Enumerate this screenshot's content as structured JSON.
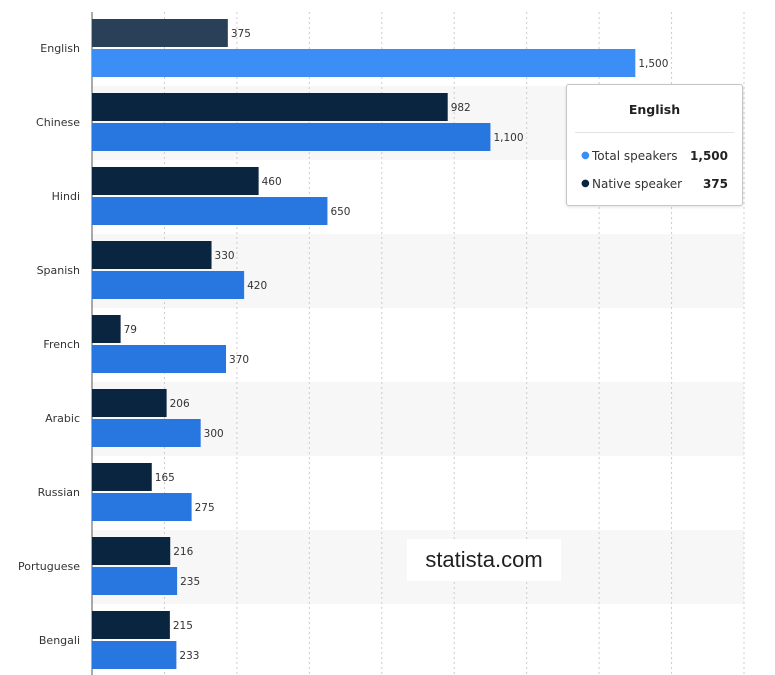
{
  "chart_data": {
    "type": "bar",
    "orientation": "horizontal",
    "categories": [
      "English",
      "Chinese",
      "Hindi",
      "Spanish",
      "French",
      "Arabic",
      "Russian",
      "Portuguese",
      "Bengali"
    ],
    "series": [
      {
        "name": "Native speaker",
        "color": "#0a2540",
        "values": [
          375,
          982,
          460,
          330,
          79,
          206,
          165,
          216,
          215
        ],
        "labels": [
          "375",
          "982",
          "460",
          "330",
          "79",
          "206",
          "165",
          "216",
          "215"
        ]
      },
      {
        "name": "Total speakers",
        "color": "#2876e0",
        "values": [
          1500,
          1100,
          650,
          420,
          370,
          300,
          275,
          235,
          233
        ],
        "labels": [
          "1,500",
          "1,100",
          "650",
          "420",
          "370",
          "300",
          "275",
          "235",
          "233"
        ]
      }
    ],
    "xlim": [
      0,
      1800
    ],
    "grid": true,
    "highlighted_category": "English"
  },
  "tooltip": {
    "title": "English",
    "rows": [
      {
        "name": "Total speakers",
        "value": "1,500",
        "color": "#3a8ef6"
      },
      {
        "name": "Native speaker",
        "value": "375",
        "color": "#0a2540"
      }
    ]
  },
  "watermark": {
    "text": "statista.com"
  }
}
